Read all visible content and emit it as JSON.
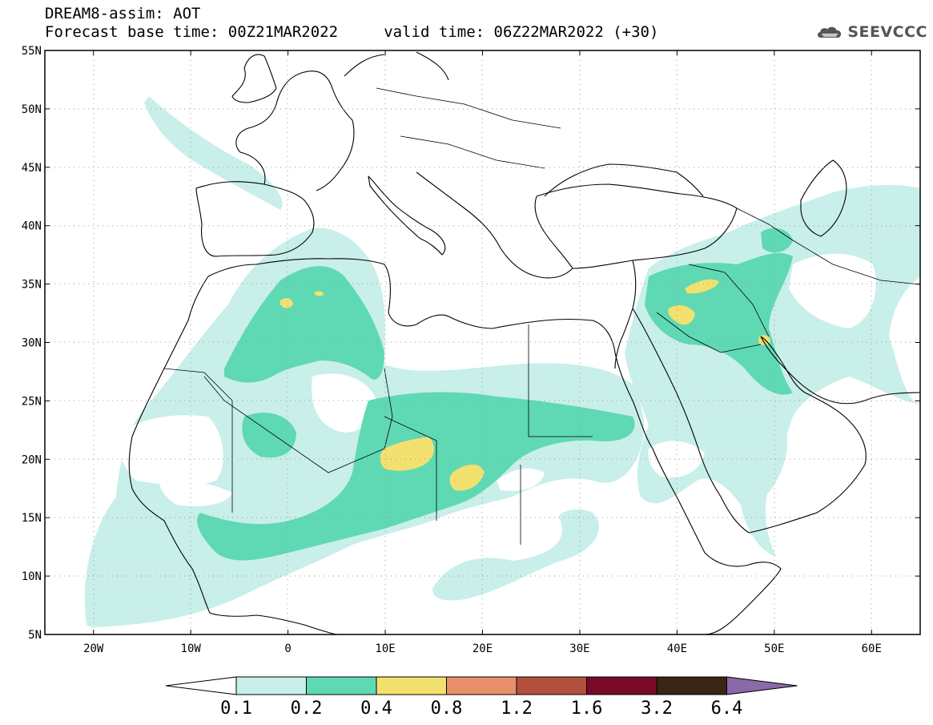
{
  "header": {
    "line1": "DREAM8-assim: AOT",
    "line2": "Forecast base time: 00Z21MAR2022     valid time: 06Z22MAR2022 (+30)"
  },
  "logo": {
    "text": "SEEVCCC",
    "icon": "cloud-icon"
  },
  "map": {
    "lon_range": [
      -25,
      65
    ],
    "lat_range": [
      5,
      55
    ],
    "grid": "dotted",
    "lat_ticks": [
      "5N",
      "10N",
      "15N",
      "20N",
      "25N",
      "30N",
      "35N",
      "40N",
      "45N",
      "50N",
      "55N"
    ],
    "lon_ticks": [
      "20W",
      "10W",
      "0",
      "10E",
      "20E",
      "30E",
      "40E",
      "50E",
      "60E"
    ],
    "projection": "lat-lon"
  },
  "colorbar": {
    "labels": [
      "0.1",
      "0.2",
      "0.4",
      "0.8",
      "1.2",
      "1.6",
      "3.2",
      "6.4"
    ],
    "colors": [
      "#ffffff",
      "#c8efe9",
      "#5fd9b3",
      "#f3e16f",
      "#e8906a",
      "#b3503e",
      "#7a0a2a",
      "#3a2414",
      "#8b6aa8"
    ]
  },
  "field_colors": {
    "low": "#c8efe9",
    "mid": "#5fd9b3",
    "high": "#f3e16f"
  }
}
